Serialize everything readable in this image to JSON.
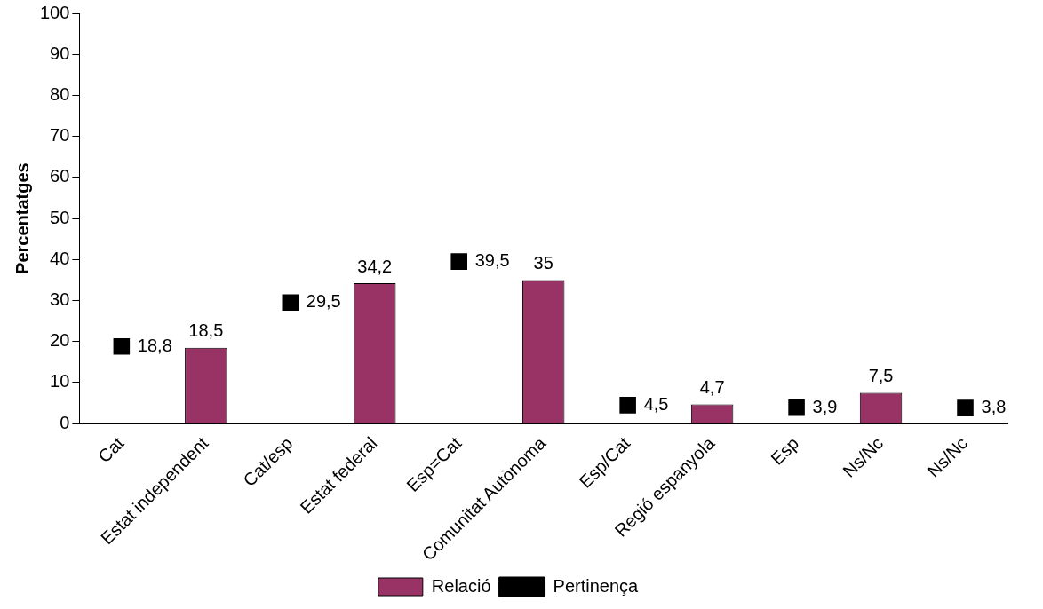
{
  "chart_data": {
    "type": "bar",
    "ylabel": "Percentatges",
    "categories": [
      "Cat",
      "Estat independent",
      "Cat/esp",
      "Estat federal",
      "Esp=Cat",
      "Comunitat Autònoma",
      "Esp/Cat",
      "Regió espanyola",
      "Esp",
      "Ns/Nc",
      "Ns/Nc"
    ],
    "series": [
      {
        "name": "Relació",
        "color": "#993366",
        "values": [
          null,
          18.5,
          null,
          34.2,
          null,
          35,
          null,
          4.7,
          null,
          7.5,
          null
        ],
        "value_labels": [
          null,
          "18,5",
          null,
          "34,2",
          null,
          "35",
          null,
          "4,7",
          null,
          "7,5",
          null
        ]
      },
      {
        "name": "Pertinença",
        "type": "scatter",
        "color": "#000000",
        "values": [
          18.8,
          null,
          29.5,
          null,
          39.5,
          null,
          4.5,
          null,
          3.9,
          null,
          3.8
        ],
        "value_labels": [
          "18,8",
          null,
          "29,5",
          null,
          "39,5",
          null,
          "4,5",
          null,
          "3,9",
          null,
          "3,8"
        ]
      }
    ],
    "ylim": [
      0,
      100
    ],
    "yticks": [
      0,
      10,
      20,
      30,
      40,
      50,
      60,
      70,
      80,
      90,
      100
    ],
    "grid": false,
    "legend": "bottom",
    "marker": "square"
  }
}
